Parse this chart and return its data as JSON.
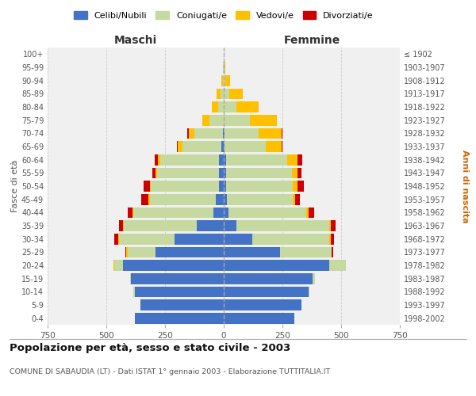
{
  "age_groups": [
    "0-4",
    "5-9",
    "10-14",
    "15-19",
    "20-24",
    "25-29",
    "30-34",
    "35-39",
    "40-44",
    "45-49",
    "50-54",
    "55-59",
    "60-64",
    "65-69",
    "70-74",
    "75-79",
    "80-84",
    "85-89",
    "90-94",
    "95-99",
    "100+"
  ],
  "birth_years": [
    "1998-2002",
    "1993-1997",
    "1988-1992",
    "1983-1987",
    "1978-1982",
    "1973-1977",
    "1968-1972",
    "1963-1967",
    "1958-1962",
    "1953-1957",
    "1948-1952",
    "1943-1947",
    "1938-1942",
    "1933-1937",
    "1928-1932",
    "1923-1927",
    "1918-1922",
    "1913-1917",
    "1908-1912",
    "1903-1907",
    "≤ 1902"
  ],
  "male": {
    "celibi": [
      380,
      355,
      380,
      395,
      430,
      290,
      210,
      115,
      45,
      35,
      20,
      20,
      20,
      10,
      5,
      0,
      0,
      0,
      0,
      0,
      0
    ],
    "coniugati": [
      0,
      0,
      5,
      5,
      35,
      120,
      235,
      310,
      340,
      280,
      290,
      265,
      250,
      165,
      120,
      60,
      25,
      15,
      5,
      2,
      0
    ],
    "vedovi": [
      0,
      0,
      0,
      0,
      5,
      5,
      5,
      5,
      5,
      5,
      5,
      5,
      10,
      20,
      25,
      30,
      25,
      15,
      5,
      2,
      0
    ],
    "divorziati": [
      0,
      0,
      0,
      0,
      0,
      5,
      15,
      15,
      20,
      30,
      25,
      15,
      15,
      5,
      5,
      0,
      0,
      0,
      0,
      0,
      0
    ]
  },
  "female": {
    "nubili": [
      300,
      330,
      360,
      380,
      450,
      240,
      120,
      55,
      20,
      15,
      10,
      10,
      10,
      5,
      5,
      0,
      0,
      0,
      0,
      0,
      0
    ],
    "coniugate": [
      0,
      0,
      5,
      10,
      70,
      220,
      330,
      395,
      330,
      280,
      285,
      280,
      260,
      175,
      145,
      110,
      55,
      25,
      8,
      2,
      0
    ],
    "vedove": [
      0,
      0,
      0,
      0,
      0,
      0,
      5,
      5,
      10,
      10,
      20,
      25,
      45,
      65,
      95,
      115,
      95,
      55,
      20,
      5,
      0
    ],
    "divorziate": [
      0,
      0,
      0,
      0,
      0,
      5,
      15,
      20,
      25,
      20,
      25,
      15,
      20,
      5,
      5,
      0,
      0,
      0,
      0,
      0,
      0
    ]
  },
  "colors": {
    "celibi": "#4472c4",
    "coniugati": "#c5d9a0",
    "vedovi": "#ffc000",
    "divorziati": "#cc0000"
  },
  "xlim": 750,
  "title": "Popolazione per età, sesso e stato civile - 2003",
  "subtitle": "COMUNE DI SABAUDIA (LT) - Dati ISTAT 1° gennaio 2003 - Elaborazione TUTTITALIA.IT",
  "ylabel_left": "Fasce di età",
  "ylabel_right": "Anni di nascita",
  "xlabel_left": "Maschi",
  "xlabel_right": "Femmine",
  "legend_labels": [
    "Celibi/Nubili",
    "Coniugati/e",
    "Vedovi/e",
    "Divorziati/e"
  ],
  "bg_color": "#ffffff",
  "plot_bg_color": "#f0f0f0",
  "grid_color": "#cccccc"
}
